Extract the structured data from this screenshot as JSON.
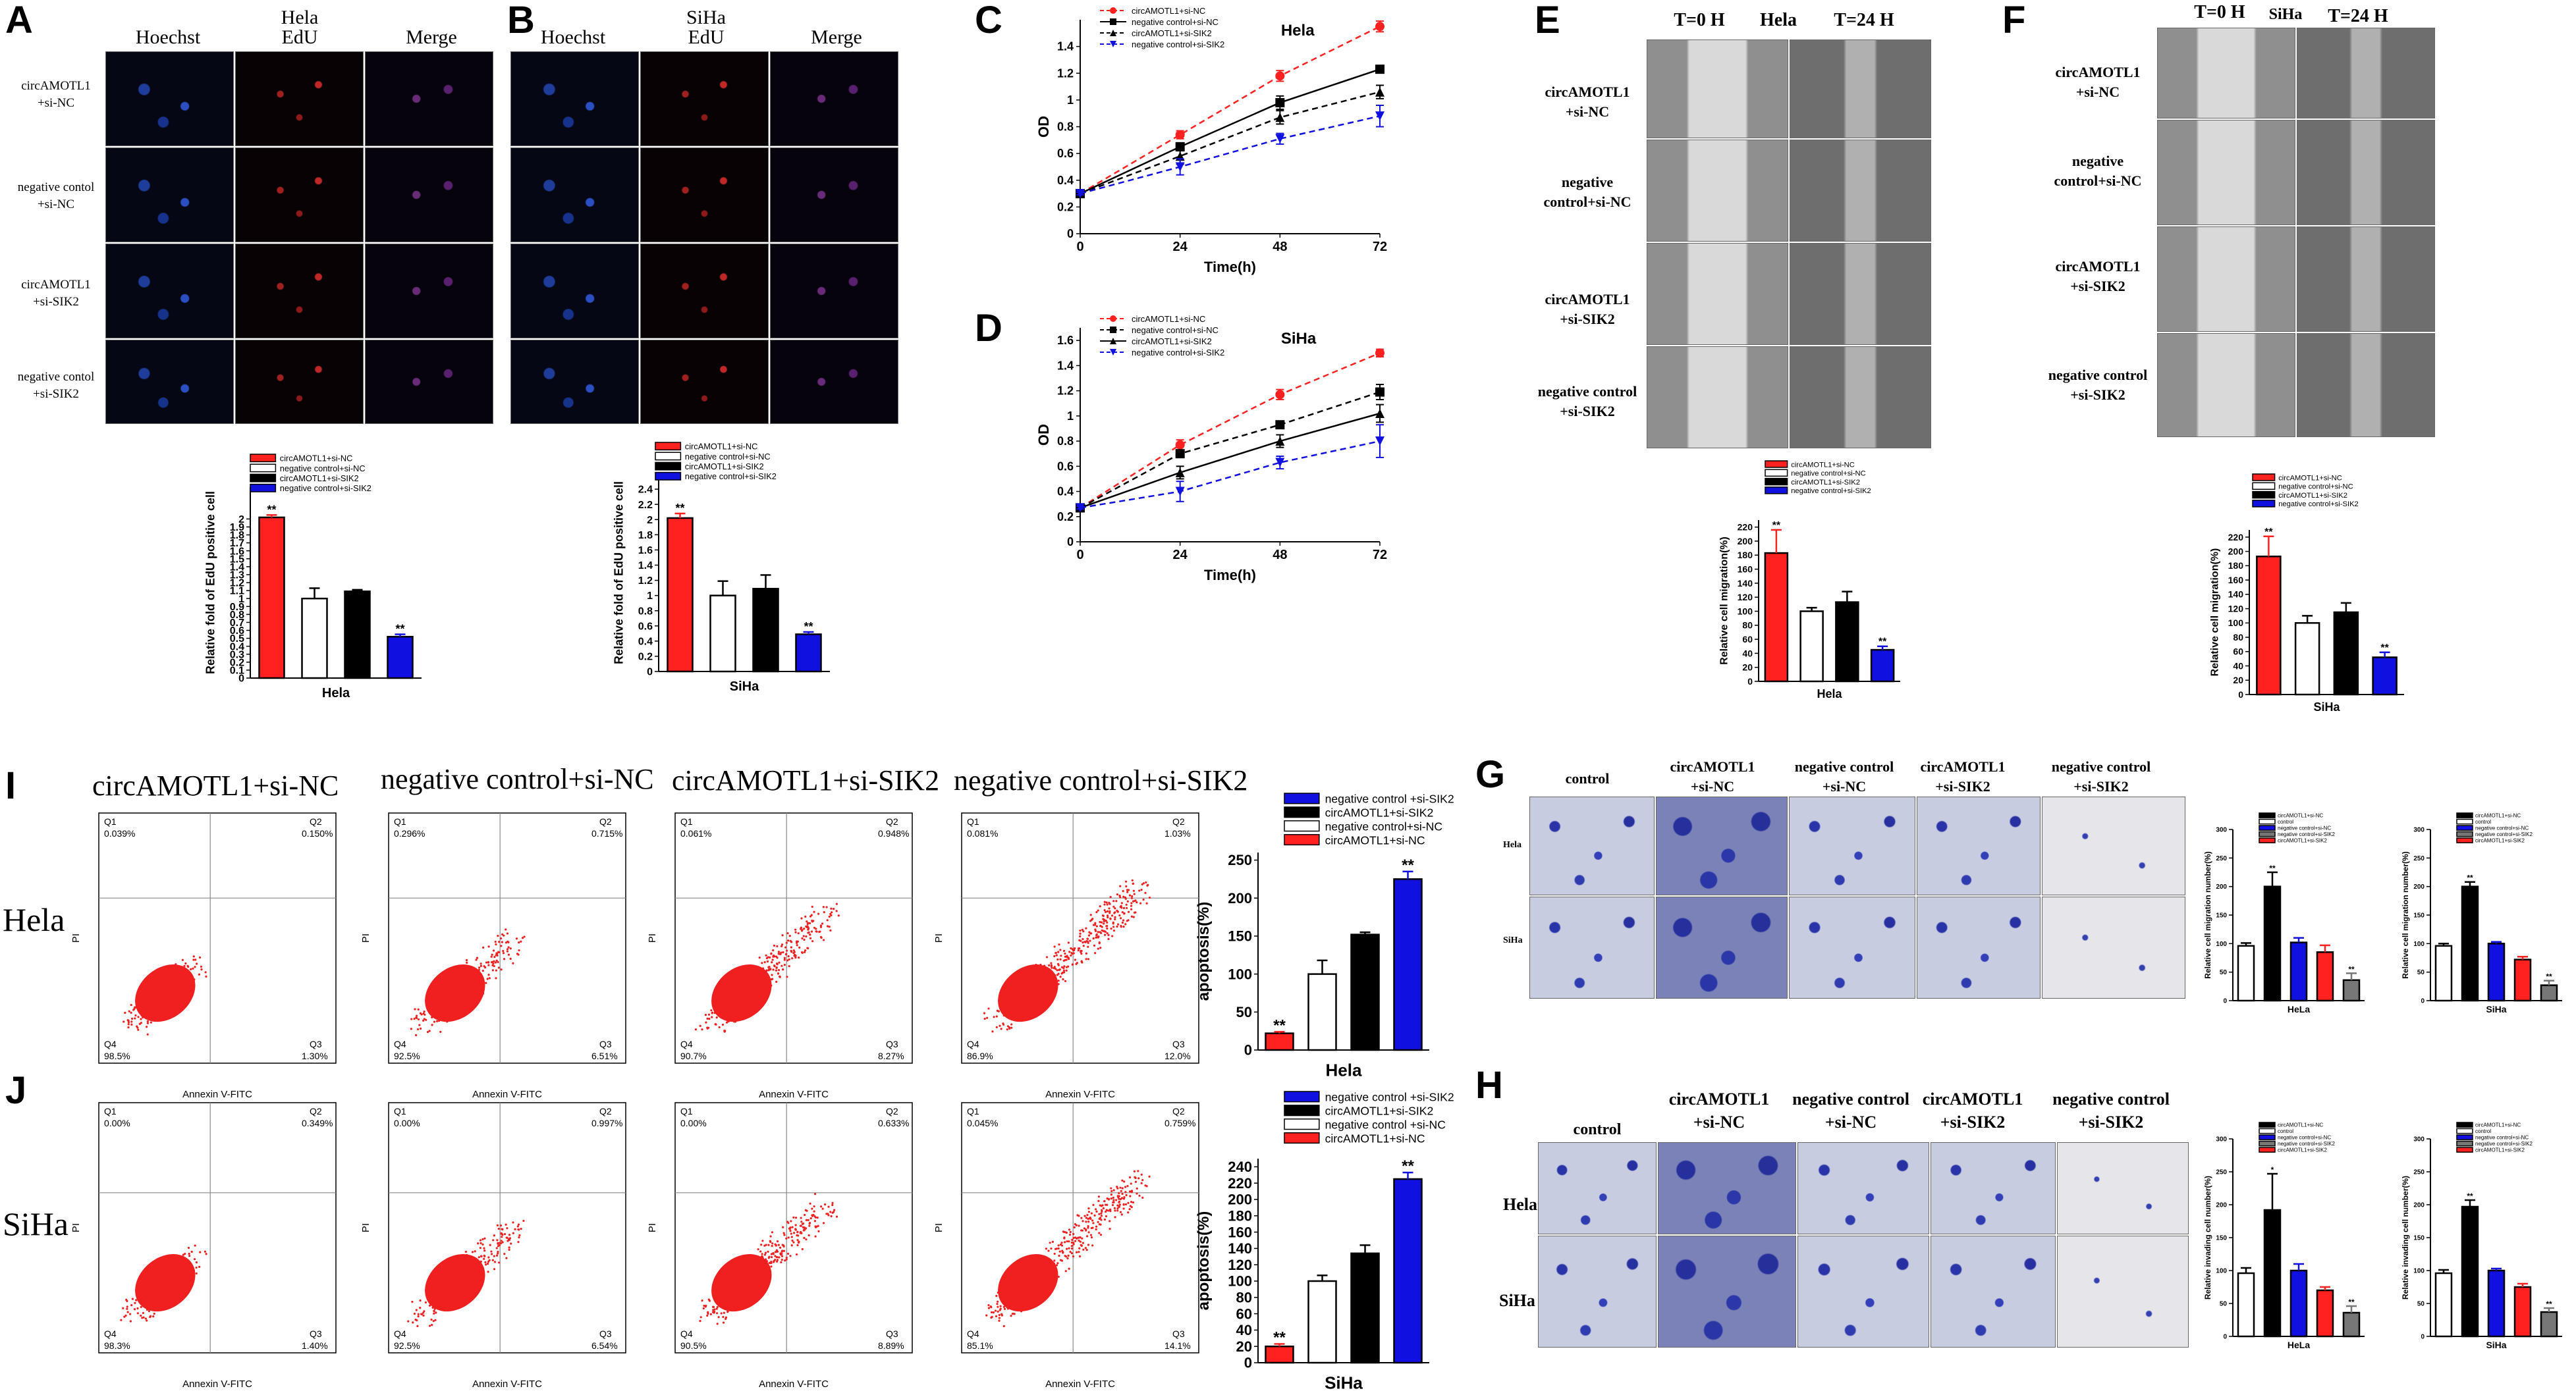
{
  "panels": {
    "A": "A",
    "B": "B",
    "C": "C",
    "D": "D",
    "E": "E",
    "F": "F",
    "I": "I",
    "J": "J",
    "G": "G",
    "H": "H"
  },
  "panelA": {
    "col1": "Hoechst",
    "col2a": "Hela",
    "col2b": "EdU",
    "col3": "Merge",
    "rows": [
      "circAMOTL1\n+si-NC",
      "negative contol\n+si-NC",
      "circAMOTL1\n+si-SIK2",
      "negative contol\n+si-SIK2"
    ]
  },
  "panelB": {
    "col1": "Hoechst",
    "col2a": "SiHa",
    "col2b": "EdU",
    "col3": "Merge"
  },
  "panelE": {
    "t0": "T=0 H",
    "cell": "Hela",
    "t24": "T=24 H",
    "rows": [
      "circAMOTL1\n+si-NC",
      "negative\ncontrol+si-NC",
      "circAMOTL1\n+si-SIK2",
      "negative control\n+si-SIK2"
    ]
  },
  "panelF": {
    "t0": "T=0 H",
    "cell": "SiHa",
    "t24": "T=24 H",
    "rows": [
      "circAMOTL1\n+si-NC",
      "negative\ncontrol+si-NC",
      "circAMOTL1\n+si-SIK2",
      "negative control\n+si-SIK2"
    ]
  },
  "flow": {
    "cols": [
      "circAMOTL1+si-NC",
      "negative control+si-NC",
      "circAMOTL1+si-SIK2",
      "negative control+si-SIK2"
    ],
    "rowI": "Hela",
    "rowJ": "SiHa",
    "xlabel": "Annexin V-FITC",
    "ylabel": "PI",
    "q": [
      "Q1",
      "Q2",
      "Q3",
      "Q4"
    ],
    "I_vals": [
      [
        "0.039%",
        "0.150%",
        "1.30%",
        "98.5%"
      ],
      [
        "0.296%",
        "0.715%",
        "6.51%",
        "92.5%"
      ],
      [
        "0.061%",
        "0.948%",
        "8.27%",
        "90.7%"
      ],
      [
        "0.081%",
        "1.03%",
        "12.0%",
        "86.9%"
      ]
    ],
    "J_vals": [
      [
        "0.00%",
        "0.349%",
        "1.40%",
        "98.3%"
      ],
      [
        "0.00%",
        "0.997%",
        "6.54%",
        "92.5%"
      ],
      [
        "0.00%",
        "0.633%",
        "8.89%",
        "90.5%"
      ],
      [
        "0.045%",
        "0.759%",
        "14.1%",
        "85.1%"
      ]
    ]
  },
  "panelG": {
    "cols": [
      "control",
      "circAMOTL1\n+si-NC",
      "negative control\n+si-NC",
      "circAMOTL1\n+si-SIK2",
      "negative control\n+si-SIK2"
    ],
    "rows": [
      "Hela",
      "SiHa"
    ]
  },
  "panelH": {
    "cols": [
      "control",
      "circAMOTL1\n+si-NC",
      "negative control\n+si-NC",
      "circAMOTL1\n+si-SIK2",
      "negative control\n+si-SIK2"
    ],
    "rows": [
      "Hela",
      "SiHa"
    ]
  },
  "chart_data": [
    {
      "id": "A",
      "type": "bar",
      "categories": [
        "circAMOTL1+si-NC",
        "negative control+si-NC",
        "circAMOTL1+si-SIK2",
        "negative control+si-SIK2"
      ],
      "values": [
        2.02,
        1.0,
        1.09,
        0.52
      ],
      "errors": [
        0.03,
        0.13,
        0.02,
        0.03
      ],
      "ylabel": "Relative fold of EdU positive cell",
      "xlabel": "Hela",
      "ylim": [
        0,
        2.4
      ],
      "yticks": [
        0,
        0.1,
        0.2,
        0.3,
        0.4,
        0.5,
        0.6,
        0.7,
        0.8,
        0.9,
        1.0,
        1.1,
        1.2,
        1.3,
        1.4,
        1.5,
        1.6,
        1.7,
        1.8,
        1.9,
        2.0
      ],
      "stars": [
        "**",
        "",
        "",
        "**"
      ],
      "colors": [
        "#ff2020",
        "#ffffff",
        "#000000",
        "#1010e0"
      ],
      "legend": [
        "circAMOTL1+si-NC",
        "negative control+si-NC",
        "circAMOTL1+si-SIK2",
        "negative control+si-SIK2"
      ]
    },
    {
      "id": "B",
      "type": "bar",
      "categories": [
        "circAMOTL1+si-NC",
        "negative control+si-NC",
        "circAMOTL1+si-SIK2",
        "negative control+si-SIK2"
      ],
      "values": [
        2.02,
        1.0,
        1.09,
        0.49
      ],
      "errors": [
        0.06,
        0.19,
        0.18,
        0.03
      ],
      "ylabel": "Relative fold of EdU positive cell",
      "xlabel": "SiHa",
      "ylim": [
        0,
        2.6
      ],
      "yticks": [
        0,
        0.2,
        0.4,
        0.6,
        0.8,
        1.0,
        1.2,
        1.4,
        1.6,
        1.8,
        2.0,
        2.2,
        2.4
      ],
      "stars": [
        "**",
        "",
        "",
        "**"
      ],
      "colors": [
        "#ff2020",
        "#ffffff",
        "#000000",
        "#1010e0"
      ],
      "legend": [
        "circAMOTL1+si-NC",
        "negative control+si-NC",
        "circAMOTL1+si-SIK2",
        "negative control+si-SIK2"
      ]
    },
    {
      "id": "C",
      "type": "line",
      "title": "Hela",
      "x": [
        0,
        24,
        48,
        72
      ],
      "xticks": [
        0,
        24,
        48,
        72
      ],
      "xlabel": "Time(h)",
      "ylabel": "OD",
      "ylim": [
        0,
        1.6
      ],
      "yticks": [
        0,
        0.2,
        0.4,
        0.6,
        0.8,
        1.0,
        1.2,
        1.4
      ],
      "series": [
        {
          "name": "circAMOTL1+si-NC",
          "values": [
            0.3,
            0.74,
            1.18,
            1.55
          ],
          "errors": [
            0.01,
            0.03,
            0.04,
            0.04
          ],
          "color": "#ff2020",
          "dash": true,
          "marker": "circle"
        },
        {
          "name": "negative control+si-NC",
          "values": [
            0.3,
            0.65,
            0.98,
            1.23
          ],
          "errors": [
            0.01,
            0.03,
            0.05,
            0.01
          ],
          "color": "#000000",
          "dash": false,
          "marker": "square"
        },
        {
          "name": "circAMOTL1+si-SIK2",
          "values": [
            0.3,
            0.58,
            0.87,
            1.06
          ],
          "errors": [
            0.01,
            0.06,
            0.05,
            0.05
          ],
          "color": "#000000",
          "dash": true,
          "marker": "triangle"
        },
        {
          "name": "negative control+si-SIK2",
          "values": [
            0.3,
            0.5,
            0.71,
            0.88
          ],
          "errors": [
            0.01,
            0.06,
            0.04,
            0.08
          ],
          "color": "#1010e0",
          "dash": true,
          "marker": "triangle-down"
        }
      ]
    },
    {
      "id": "D",
      "type": "line",
      "title": "SiHa",
      "x": [
        0,
        24,
        48,
        72
      ],
      "xticks": [
        0,
        24,
        48,
        72
      ],
      "xlabel": "Time(h)",
      "ylabel": "OD",
      "ylim": [
        0,
        1.7
      ],
      "yticks": [
        0,
        0.2,
        0.4,
        0.6,
        0.8,
        1.0,
        1.2,
        1.4,
        1.6
      ],
      "series": [
        {
          "name": "circAMOTL1+si-NC",
          "values": [
            0.27,
            0.77,
            1.17,
            1.5
          ],
          "errors": [
            0.01,
            0.04,
            0.04,
            0.03
          ],
          "color": "#ff2020",
          "dash": true,
          "marker": "circle"
        },
        {
          "name": "negative control+si-NC",
          "values": [
            0.27,
            0.7,
            0.93,
            1.19
          ],
          "errors": [
            0.01,
            0.03,
            0.02,
            0.06
          ],
          "color": "#000000",
          "dash": true,
          "marker": "square"
        },
        {
          "name": "circAMOTL1+si-SIK2",
          "values": [
            0.27,
            0.55,
            0.8,
            1.02
          ],
          "errors": [
            0.01,
            0.05,
            0.05,
            0.07
          ],
          "color": "#000000",
          "dash": false,
          "marker": "triangle"
        },
        {
          "name": "negative control+si-SIK2",
          "values": [
            0.27,
            0.4,
            0.63,
            0.8
          ],
          "errors": [
            0.01,
            0.08,
            0.05,
            0.13
          ],
          "color": "#1010e0",
          "dash": true,
          "marker": "triangle-down"
        }
      ]
    },
    {
      "id": "E",
      "type": "bar",
      "categories": [
        "circAMOTL1+si-NC",
        "negative control+si-NC",
        "circAMOTL1+si-SIK2",
        "negative control+si-SIK2"
      ],
      "values": [
        183,
        100,
        113,
        45
      ],
      "errors": [
        33,
        5,
        15,
        5
      ],
      "ylabel": "Relative cell migration(%)",
      "xlabel": "Hela",
      "ylim": [
        0,
        230
      ],
      "yticks": [
        0,
        20,
        40,
        60,
        80,
        100,
        120,
        140,
        160,
        180,
        200,
        220
      ],
      "stars": [
        "**",
        "",
        "",
        "**"
      ],
      "colors": [
        "#ff2020",
        "#ffffff",
        "#000000",
        "#1010e0"
      ],
      "legend": [
        "circAMOTL1+si-NC",
        "negative control+si-NC",
        "circAMOTL1+si-SIK2",
        "negative control+si-SIK2"
      ]
    },
    {
      "id": "F",
      "type": "bar",
      "categories": [
        "circAMOTL1+si-NC",
        "negative control+si-NC",
        "circAMOTL1+si-SIK2",
        "negative control+si-SIK2"
      ],
      "values": [
        193,
        100,
        115,
        52
      ],
      "errors": [
        28,
        10,
        13,
        7
      ],
      "ylabel": "Relative cell migration(%)",
      "xlabel": "SiHa",
      "ylim": [
        0,
        230
      ],
      "yticks": [
        0,
        20,
        40,
        60,
        80,
        100,
        120,
        140,
        160,
        180,
        200,
        220
      ],
      "stars": [
        "**",
        "",
        "",
        "**"
      ],
      "colors": [
        "#ff2020",
        "#ffffff",
        "#000000",
        "#1010e0"
      ],
      "legend": [
        "circAMOTL1+si-NC",
        "negative control+si-NC",
        "circAMOTL1+si-SIK2",
        "negative control+si-SIK2"
      ]
    },
    {
      "id": "I",
      "type": "bar",
      "categories": [
        "circAMOTL1+si-NC",
        "negative control+si-NC",
        "circAMOTL1+si-SIK2",
        "negative control +si-SIK2"
      ],
      "values": [
        22,
        100,
        152,
        225
      ],
      "errors": [
        2,
        18,
        3,
        10
      ],
      "ylabel": "apoptosis(%)",
      "xlabel": "Hela",
      "ylim": [
        0,
        260
      ],
      "yticks": [
        0,
        50,
        100,
        150,
        200,
        250
      ],
      "stars": [
        "**",
        "",
        "",
        "**"
      ],
      "colors": [
        "#ff2020",
        "#ffffff",
        "#000000",
        "#1010e0"
      ],
      "legend": [
        "negative control +si-SIK2",
        "circAMOTL1+si-SIK2",
        "negative control+si-NC",
        "circAMOTL1+si-NC"
      ]
    },
    {
      "id": "J",
      "type": "bar",
      "categories": [
        "circAMOTL1+si-NC",
        "negative control+si-NC",
        "circAMOTL1+si-SIK2",
        "negative control +si-SIK2"
      ],
      "values": [
        20,
        100,
        134,
        225
      ],
      "errors": [
        3,
        7,
        10,
        8
      ],
      "ylabel": "apoptosis(%)",
      "xlabel": "SiHa",
      "ylim": [
        0,
        250
      ],
      "yticks": [
        0,
        20,
        40,
        60,
        80,
        100,
        120,
        140,
        160,
        180,
        200,
        220,
        240
      ],
      "stars": [
        "**",
        "",
        "",
        "**"
      ],
      "colors": [
        "#ff2020",
        "#ffffff",
        "#000000",
        "#1010e0"
      ],
      "legend": [
        "negative control +si-SIK2",
        "circAMOTL1+si-SIK2",
        "negative control +si-NC",
        "circAMOTL1+si-NC"
      ]
    },
    {
      "id": "G1",
      "type": "bar",
      "categories": [
        "control",
        "circAMOTL1+si-NC",
        "negative control+si-NC",
        "circAMOTL1+si-SIK2",
        "negative control+si-SIK2"
      ],
      "values": [
        96,
        200,
        102,
        85,
        36
      ],
      "errors": [
        5,
        25,
        8,
        12,
        12
      ],
      "ylabel": "Relative cell migration number(%)",
      "xlabel": "HeLa",
      "ylim": [
        0,
        300
      ],
      "yticks": [
        0,
        50,
        100,
        150,
        200,
        250,
        300
      ],
      "stars": [
        "",
        "**",
        "",
        "",
        "**"
      ],
      "colors": [
        "#ffffff",
        "#000000",
        "#1010e0",
        "#ff2020",
        "#777777"
      ],
      "legend": [
        "circAMOTL1+si-NC",
        "control",
        "negative control+si-NC",
        "negative control+si-SIK2",
        "circAMOTL1+si-SIK2"
      ]
    },
    {
      "id": "G2",
      "type": "bar",
      "categories": [
        "control",
        "circAMOTL1+si-NC",
        "negative control+si-NC",
        "circAMOTL1+si-SIK2",
        "negative control+si-SIK2"
      ],
      "values": [
        96,
        200,
        100,
        72,
        27
      ],
      "errors": [
        4,
        8,
        3,
        5,
        8
      ],
      "ylabel": "Relative cell migration number(%)",
      "xlabel": "SiHa",
      "ylim": [
        0,
        300
      ],
      "yticks": [
        0,
        50,
        100,
        150,
        200,
        250,
        300
      ],
      "stars": [
        "",
        "**",
        "",
        "",
        "**"
      ],
      "colors": [
        "#ffffff",
        "#000000",
        "#1010e0",
        "#ff2020",
        "#777777"
      ],
      "legend": [
        "circAMOTL1+si-NC",
        "control",
        "negative control+si-NC",
        "negative control+si-SIK2",
        "circAMOTL1+si-SIK2"
      ]
    },
    {
      "id": "H1",
      "type": "bar",
      "categories": [
        "control",
        "circAMOTL1+si-NC",
        "negative control+si-NC",
        "circAMOTL1+si-SIK2",
        "negative control+si-SIK2"
      ],
      "values": [
        96,
        192,
        100,
        70,
        36
      ],
      "errors": [
        8,
        55,
        10,
        5,
        10
      ],
      "ylabel": "Relative invading cell number(%)",
      "xlabel": "HeLa",
      "ylim": [
        0,
        300
      ],
      "yticks": [
        0,
        50,
        100,
        150,
        200,
        250,
        300
      ],
      "stars": [
        "",
        "*",
        "",
        "",
        "**"
      ],
      "colors": [
        "#ffffff",
        "#000000",
        "#1010e0",
        "#ff2020",
        "#777777"
      ],
      "legend": [
        "circAMOTL1+si-NC",
        "control",
        "negative control+si-NC",
        "negative control+si-SIK2",
        "circAMOTL1+si-SIK2"
      ]
    },
    {
      "id": "H2",
      "type": "bar",
      "categories": [
        "control",
        "circAMOTL1+si-NC",
        "negative control+si-NC",
        "circAMOTL1+si-SIK2",
        "negative control+si-SIK2"
      ],
      "values": [
        96,
        197,
        100,
        75,
        37
      ],
      "errors": [
        5,
        10,
        3,
        5,
        6
      ],
      "ylabel": "Relative invading cell number(%)",
      "xlabel": "SiHa",
      "ylim": [
        0,
        300
      ],
      "yticks": [
        0,
        50,
        100,
        150,
        200,
        250,
        300
      ],
      "stars": [
        "",
        "**",
        "",
        "",
        "**"
      ],
      "colors": [
        "#ffffff",
        "#000000",
        "#1010e0",
        "#ff2020",
        "#777777"
      ],
      "legend": [
        "circAMOTL1+si-NC",
        "control",
        "negative control+si-NC",
        "negative control+si-SIK2",
        "circAMOTL1+si-SIK2"
      ]
    }
  ]
}
